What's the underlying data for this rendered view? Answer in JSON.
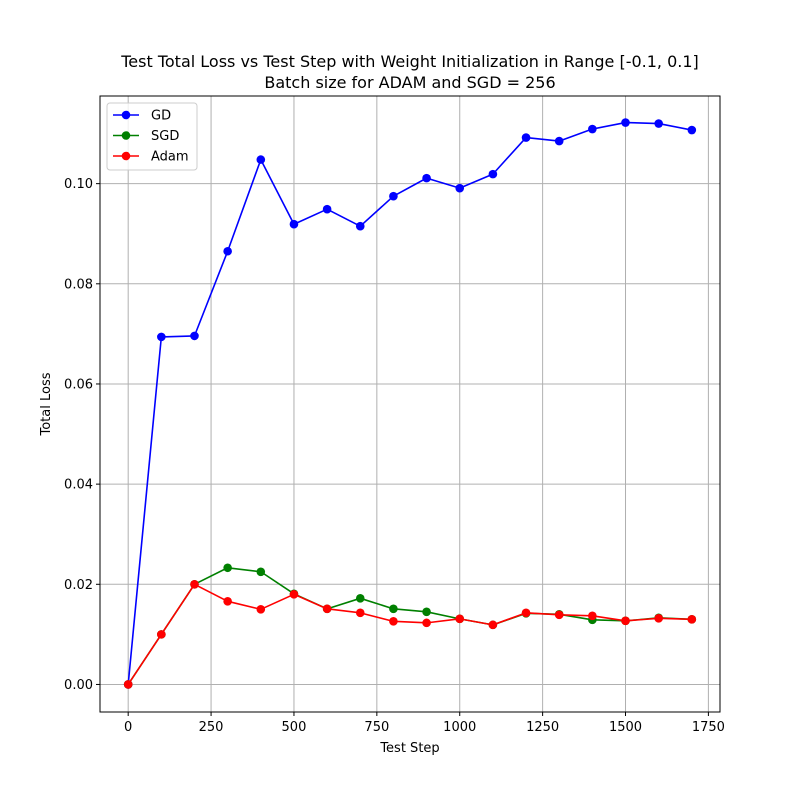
{
  "chart_data": {
    "type": "line",
    "title_line1": "Test Total Loss vs Test Step with Weight Initialization in Range [-0.1, 0.1]",
    "title_line2": "Batch size for ADAM and SGD = 256",
    "xlabel": "Test Step",
    "ylabel": "Total Loss",
    "xlim": [
      -85,
      1785
    ],
    "ylim": [
      -0.0055,
      0.1175
    ],
    "xticks": [
      0,
      250,
      500,
      750,
      1000,
      1250,
      1500,
      1750
    ],
    "xtick_labels": [
      "0",
      "250",
      "500",
      "750",
      "1000",
      "1250",
      "1500",
      "1750"
    ],
    "yticks": [
      0.0,
      0.02,
      0.04,
      0.06,
      0.08,
      0.1
    ],
    "ytick_labels": [
      "0.00",
      "0.02",
      "0.04",
      "0.06",
      "0.08",
      "0.10"
    ],
    "grid": true,
    "legend_position": "top-left",
    "x": [
      0,
      100,
      200,
      300,
      400,
      500,
      600,
      700,
      800,
      900,
      1000,
      1100,
      1200,
      1300,
      1400,
      1500,
      1600,
      1700
    ],
    "series": [
      {
        "name": "GD",
        "color": "#0000ff",
        "values": [
          0.0,
          0.0694,
          0.0696,
          0.0865,
          0.1048,
          0.0919,
          0.0949,
          0.0915,
          0.0975,
          0.1011,
          0.0991,
          0.1019,
          0.1092,
          0.1085,
          0.1109,
          0.1122,
          0.112,
          0.1107
        ]
      },
      {
        "name": "SGD",
        "color": "#008000",
        "values": [
          0.0,
          0.01,
          0.02,
          0.0233,
          0.0225,
          0.0181,
          0.0151,
          0.0172,
          0.0151,
          0.0145,
          0.0131,
          0.0119,
          0.0142,
          0.014,
          0.0129,
          0.0127,
          0.0133,
          0.013
        ]
      },
      {
        "name": "Adam",
        "color": "#ff0000",
        "values": [
          0.0,
          0.01,
          0.02,
          0.0166,
          0.015,
          0.018,
          0.0151,
          0.0143,
          0.0126,
          0.0123,
          0.0131,
          0.0119,
          0.0143,
          0.0139,
          0.0137,
          0.0127,
          0.0132,
          0.013
        ]
      }
    ]
  }
}
